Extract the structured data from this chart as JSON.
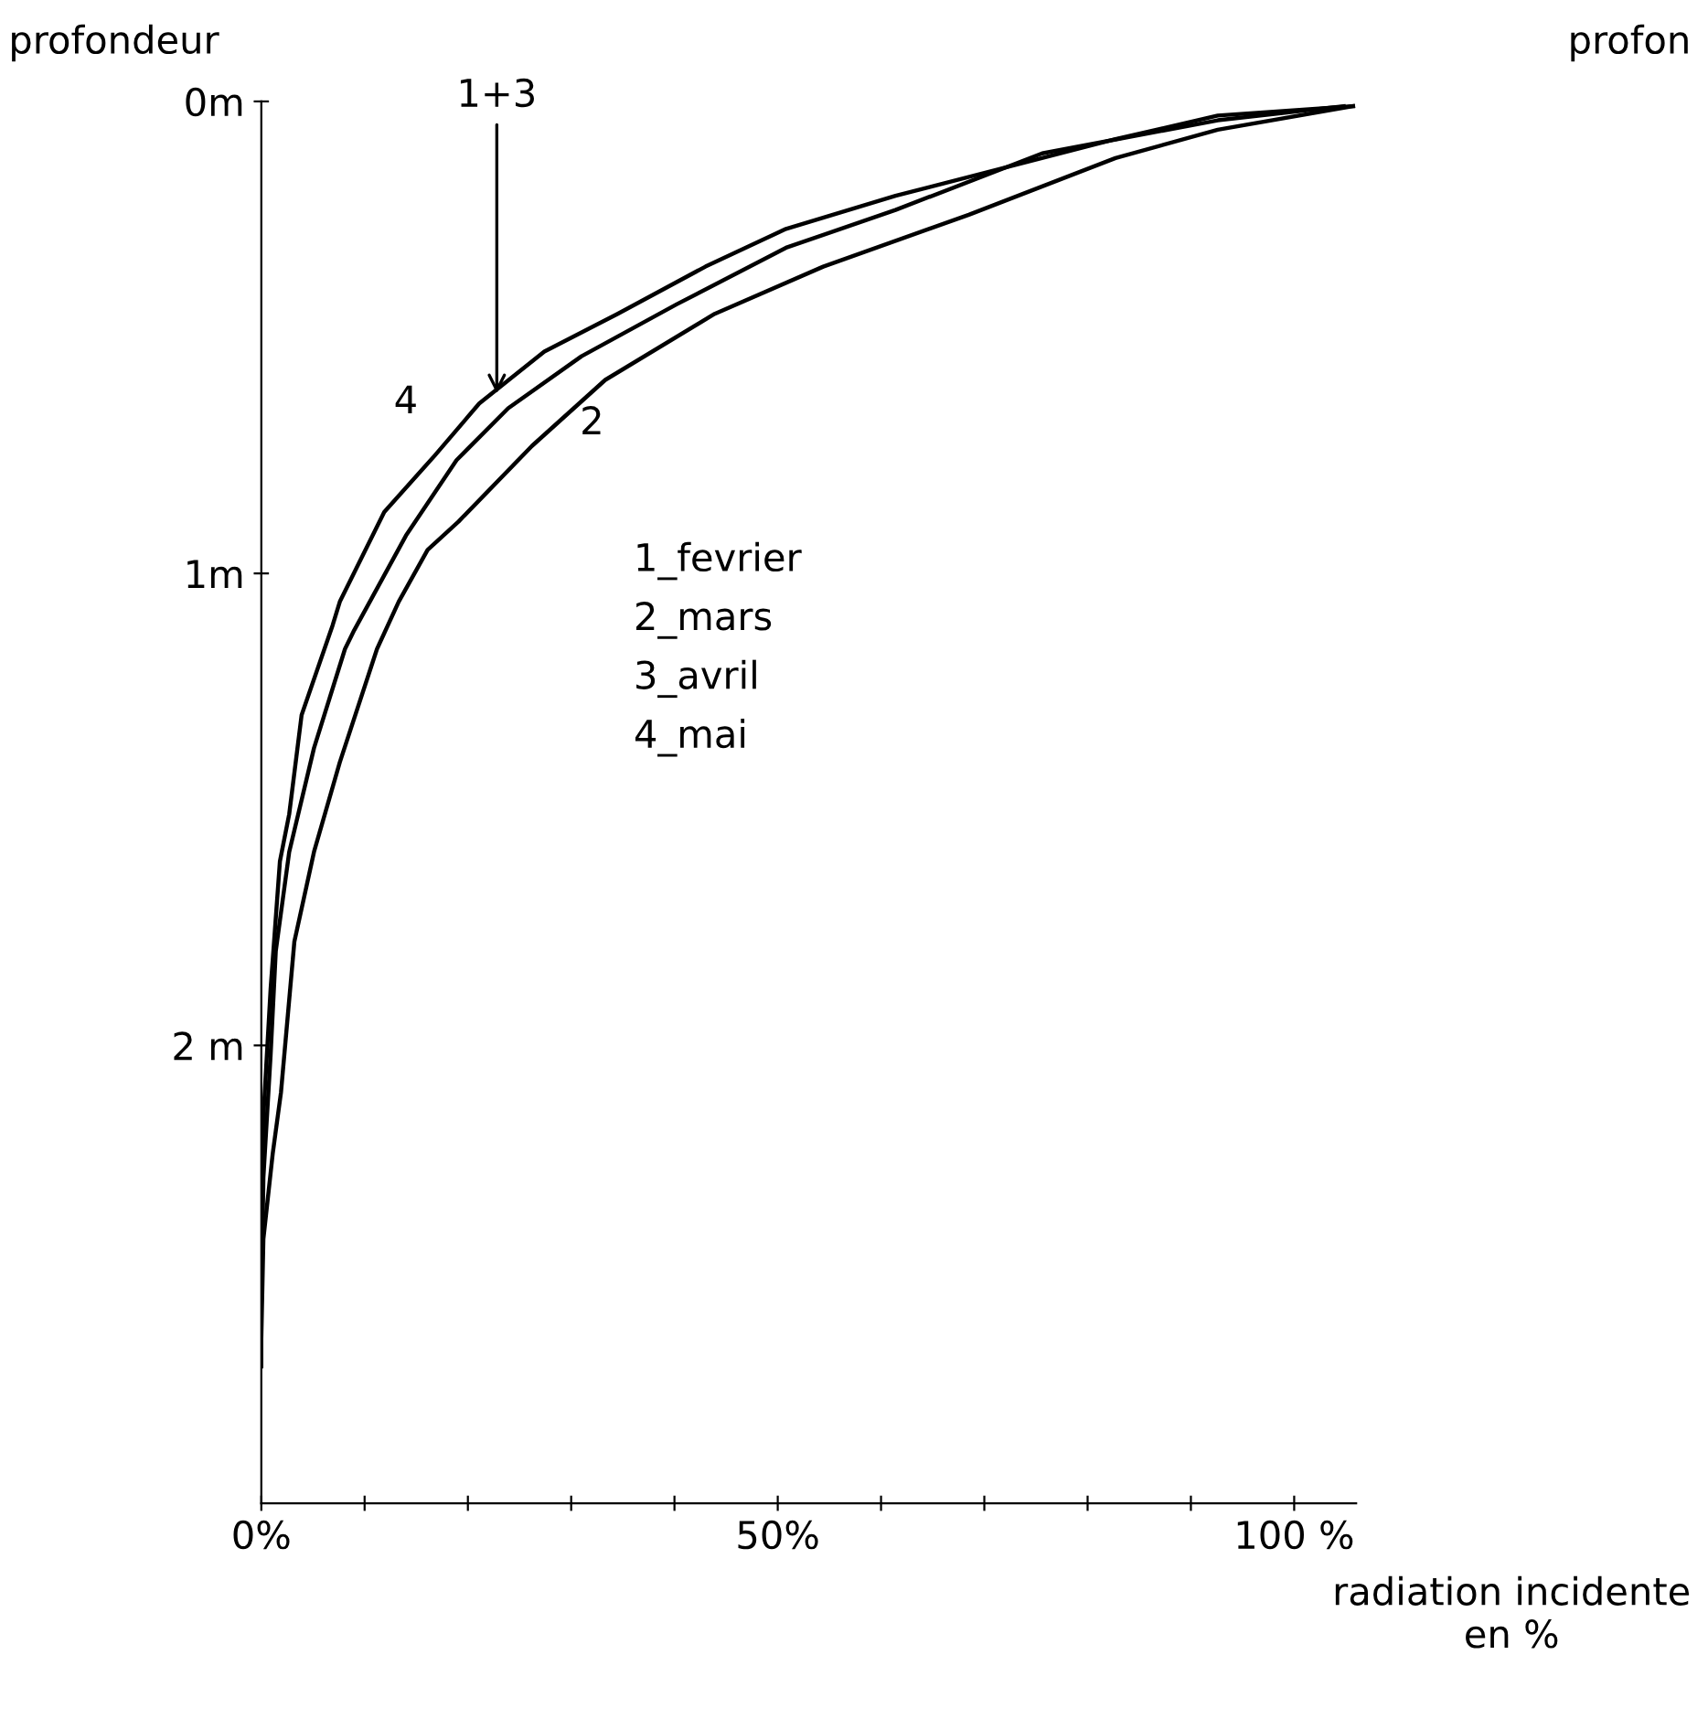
{
  "chart_data": {
    "type": "line",
    "ylabel": "profondeur",
    "xlabel": "radiation incidente\nen %",
    "xlim": [
      0,
      106
    ],
    "ylim": [
      2.97,
      0
    ],
    "xticks": [
      {
        "value": 0,
        "label": "0%"
      },
      {
        "value": 10,
        "label": null
      },
      {
        "value": 20,
        "label": null
      },
      {
        "value": 30,
        "label": null
      },
      {
        "value": 40,
        "label": null
      },
      {
        "value": 50,
        "label": "50%"
      },
      {
        "value": 60,
        "label": null
      },
      {
        "value": 70,
        "label": null
      },
      {
        "value": 80,
        "label": null
      },
      {
        "value": 90,
        "label": null
      },
      {
        "value": 100,
        "label": "100 %"
      }
    ],
    "yticks": [
      {
        "value": 0,
        "label": "0m"
      },
      {
        "value": 1,
        "label": "1m"
      },
      {
        "value": 2,
        "label": "2 m"
      }
    ],
    "grid": false,
    "legend": false,
    "marker": "none",
    "line_style": "solid",
    "series": [
      {
        "color": "#000000",
        "x": [
          105.7,
          92.6,
          82.7,
          61.4,
          50.8,
          43.0,
          34.5,
          27.4,
          21.1,
          16.8,
          11.9,
          7.6,
          6.9,
          3.9,
          2.7,
          1.8,
          0.9,
          0.2,
          0,
          0
        ],
        "values": [
          0.01,
          0.03,
          0.08,
          0.2,
          0.27,
          0.35,
          0.45,
          0.53,
          0.64,
          0.75,
          0.87,
          1.06,
          1.11,
          1.3,
          1.51,
          1.61,
          1.88,
          2.15,
          2.41,
          2.68
        ]
      },
      {
        "color": "#000000",
        "x": [
          104.8,
          92.6,
          75.6,
          61.4,
          50.8,
          40.2,
          31.0,
          23.9,
          18.9,
          14.0,
          9.0,
          8.1,
          5.1,
          2.7,
          1.4,
          0.9,
          0.2,
          0
        ],
        "values": [
          0.01,
          0.04,
          0.11,
          0.23,
          0.31,
          0.43,
          0.54,
          0.65,
          0.76,
          0.92,
          1.12,
          1.16,
          1.37,
          1.59,
          1.8,
          2.02,
          2.28,
          2.55
        ]
      },
      {
        "color": "#000000",
        "x": [
          105.7,
          92.6,
          82.7,
          68.5,
          54.4,
          43.9,
          33.3,
          26.2,
          19.1,
          16.1,
          13.3,
          11.2,
          7.6,
          5.1,
          3.2,
          1.9,
          1.1,
          0.2,
          0
        ],
        "values": [
          0.01,
          0.06,
          0.12,
          0.24,
          0.35,
          0.45,
          0.59,
          0.73,
          0.89,
          0.95,
          1.06,
          1.16,
          1.4,
          1.59,
          1.78,
          2.1,
          2.23,
          2.41,
          2.62
        ]
      }
    ],
    "annotations": [
      {
        "text": "1+3",
        "x": 22.8,
        "y": 0.63
      },
      "4",
      "2",
      "1_fevrier",
      "2_mars",
      "3_avril",
      "4_mai",
      "profon"
    ]
  }
}
